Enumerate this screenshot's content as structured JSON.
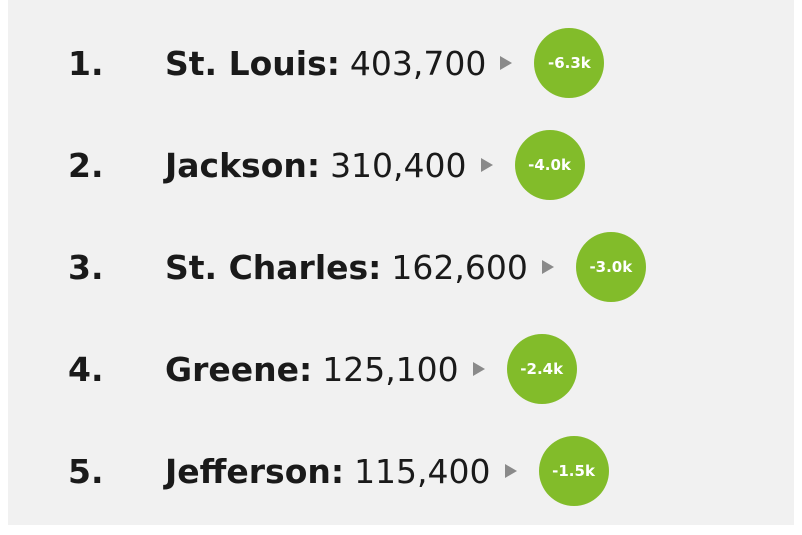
{
  "items": [
    {
      "rank": "1.",
      "name": "St. Louis:",
      "value": "403,700",
      "change": "-6.3k"
    },
    {
      "rank": "2.",
      "name": "Jackson:",
      "value": "310,400",
      "change": "-4.0k"
    },
    {
      "rank": "3.",
      "name": "St. Charles:",
      "value": "162,600",
      "change": "-3.0k"
    },
    {
      "rank": "4.",
      "name": "Greene:",
      "value": "125,100",
      "change": "-2.4k"
    },
    {
      "rank": "5.",
      "name": "Jefferson:",
      "value": "115,400",
      "change": "-1.5k"
    }
  ]
}
